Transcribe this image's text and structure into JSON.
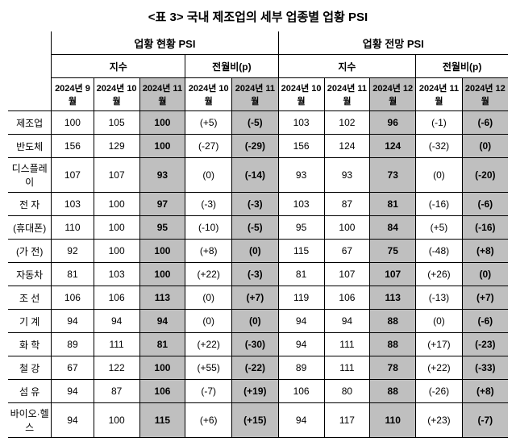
{
  "title": "<표 3> 국내 제조업의 세부 업종별 업황 PSI",
  "header": {
    "group1": "업황 현황 PSI",
    "group2": "업황 전망 PSI",
    "sub_index": "지수",
    "sub_mom": "전월비(p)",
    "col1": "2024년\n9월",
    "col2": "2024년\n10월",
    "col3": "2024년\n11월",
    "col4": "2024년\n10월",
    "col5": "2024년\n11월",
    "col6": "2024년\n10월",
    "col7": "2024년\n11월",
    "col8": "2024년\n12월",
    "col9": "2024년\n11월",
    "col10": "2024년\n12월"
  },
  "rows": [
    {
      "label": "제조업",
      "c1": "100",
      "c2": "105",
      "c3": "100",
      "c4": "(+5)",
      "c5": "(-5)",
      "c6": "103",
      "c7": "102",
      "c8": "96",
      "c9": "(-1)",
      "c10": "(-6)"
    },
    {
      "label": "반도체",
      "c1": "156",
      "c2": "129",
      "c3": "100",
      "c4": "(-27)",
      "c5": "(-29)",
      "c6": "156",
      "c7": "124",
      "c8": "124",
      "c9": "(-32)",
      "c10": "(0)"
    },
    {
      "label": "디스플레이",
      "c1": "107",
      "c2": "107",
      "c3": "93",
      "c4": "(0)",
      "c5": "(-14)",
      "c6": "93",
      "c7": "93",
      "c8": "73",
      "c9": "(0)",
      "c10": "(-20)"
    },
    {
      "label": "전 자",
      "c1": "103",
      "c2": "100",
      "c3": "97",
      "c4": "(-3)",
      "c5": "(-3)",
      "c6": "103",
      "c7": "87",
      "c8": "81",
      "c9": "(-16)",
      "c10": "(-6)"
    },
    {
      "label": "(휴대폰)",
      "c1": "110",
      "c2": "100",
      "c3": "95",
      "c4": "(-10)",
      "c5": "(-5)",
      "c6": "95",
      "c7": "100",
      "c8": "84",
      "c9": "(+5)",
      "c10": "(-16)"
    },
    {
      "label": "(가 전)",
      "c1": "92",
      "c2": "100",
      "c3": "100",
      "c4": "(+8)",
      "c5": "(0)",
      "c6": "115",
      "c7": "67",
      "c8": "75",
      "c9": "(-48)",
      "c10": "(+8)"
    },
    {
      "label": "자동차",
      "c1": "81",
      "c2": "103",
      "c3": "100",
      "c4": "(+22)",
      "c5": "(-3)",
      "c6": "81",
      "c7": "107",
      "c8": "107",
      "c9": "(+26)",
      "c10": "(0)"
    },
    {
      "label": "조 선",
      "c1": "106",
      "c2": "106",
      "c3": "113",
      "c4": "(0)",
      "c5": "(+7)",
      "c6": "119",
      "c7": "106",
      "c8": "113",
      "c9": "(-13)",
      "c10": "(+7)"
    },
    {
      "label": "기 계",
      "c1": "94",
      "c2": "94",
      "c3": "94",
      "c4": "(0)",
      "c5": "(0)",
      "c6": "94",
      "c7": "94",
      "c8": "88",
      "c9": "(0)",
      "c10": "(-6)"
    },
    {
      "label": "화 학",
      "c1": "89",
      "c2": "111",
      "c3": "81",
      "c4": "(+22)",
      "c5": "(-30)",
      "c6": "94",
      "c7": "111",
      "c8": "88",
      "c9": "(+17)",
      "c10": "(-23)"
    },
    {
      "label": "철 강",
      "c1": "67",
      "c2": "122",
      "c3": "100",
      "c4": "(+55)",
      "c5": "(-22)",
      "c6": "89",
      "c7": "111",
      "c8": "78",
      "c9": "(+22)",
      "c10": "(-33)"
    },
    {
      "label": "섬 유",
      "c1": "94",
      "c2": "87",
      "c3": "106",
      "c4": "(-7)",
      "c5": "(+19)",
      "c6": "106",
      "c7": "80",
      "c8": "88",
      "c9": "(-26)",
      "c10": "(+8)"
    },
    {
      "label": "바이오·헬스",
      "c1": "94",
      "c2": "100",
      "c3": "115",
      "c4": "(+6)",
      "c5": "(+15)",
      "c6": "94",
      "c7": "117",
      "c8": "110",
      "c9": "(+23)",
      "c10": "(-7)"
    }
  ],
  "style": {
    "shaded_color": "#bfbfbf",
    "background_color": "#ffffff",
    "border_color": "#000000",
    "title_fontsize": 15,
    "cell_fontsize": 12,
    "header_fontsize": 11,
    "shaded_cols_idx": [
      2,
      4,
      7,
      9
    ]
  }
}
